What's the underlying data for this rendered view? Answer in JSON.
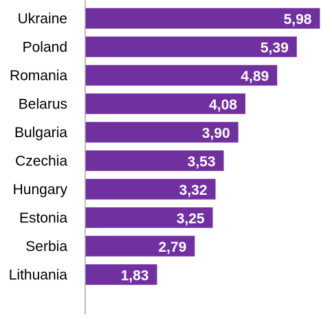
{
  "chart_data": {
    "type": "bar",
    "orientation": "horizontal",
    "categories": [
      "Ukraine",
      "Poland",
      "Romania",
      "Belarus",
      "Bulgaria",
      "Czechia",
      "Hungary",
      "Estonia",
      "Serbia",
      "Lithuania"
    ],
    "values": [
      5.98,
      5.39,
      4.89,
      4.08,
      3.9,
      3.53,
      3.32,
      3.25,
      2.79,
      1.83
    ],
    "value_labels": [
      "5,98",
      "5,39",
      "4,89",
      "4,08",
      "3,90",
      "3,53",
      "3,32",
      "3,25",
      "2,79",
      "1,83"
    ],
    "title": "",
    "xlabel": "",
    "ylabel": "",
    "xlim": [
      0,
      6.2
    ],
    "grid": false,
    "legend": "none",
    "colors": {
      "bar": "#7030A0",
      "axis": "#A6A6A6",
      "category_text": "#000000",
      "value_text": "#FFFFFF"
    }
  }
}
